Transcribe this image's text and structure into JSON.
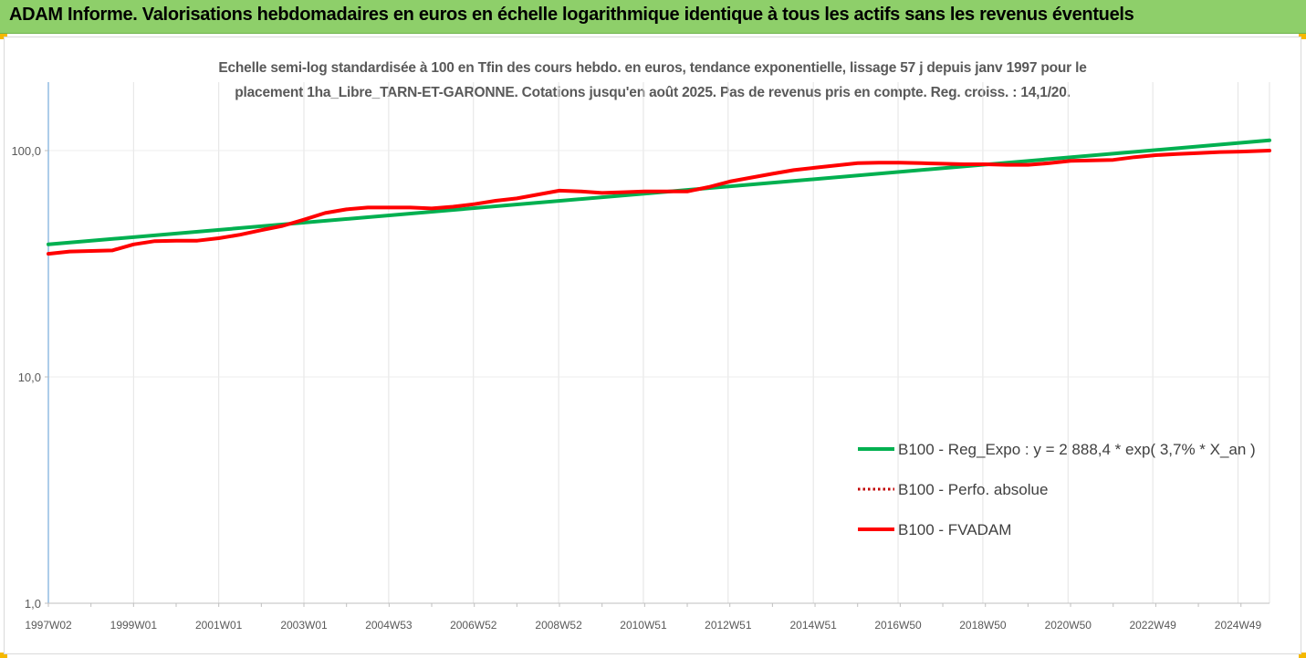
{
  "header": {
    "title": "ADAM Informe. Valorisations hebdomadaires en euros en échelle logarithmique identique à tous les actifs sans les revenus éventuels"
  },
  "chart_data": {
    "type": "line",
    "subtitle_line1": "Echelle semi-log standardisée à 100 en Tfin des cours hebdo. en euros, tendance exponentielle, lissage 57 j depuis janv 1997 pour le",
    "subtitle_line2": "placement 1ha_Libre_TARN-ET-GARONNE. Cotations jusqu'en août 2025. Pas de revenus pris en compte. Reg. croiss. : 14,1/20.",
    "y_scale": "log",
    "ylim": [
      1,
      200
    ],
    "y_ticks": [
      {
        "value": 100,
        "label": "100,0"
      },
      {
        "value": 10,
        "label": "10,0"
      },
      {
        "value": 1,
        "label": "1,0"
      }
    ],
    "xlim": [
      1997.0,
      2025.67
    ],
    "x_ticks": [
      {
        "value": 1997.0,
        "label": "1997W02"
      },
      {
        "value": 1999.0,
        "label": "1999W01"
      },
      {
        "value": 2001.0,
        "label": "2001W01"
      },
      {
        "value": 2003.0,
        "label": "2003W01"
      },
      {
        "value": 2004.99,
        "label": "2004W53"
      },
      {
        "value": 2006.98,
        "label": "2006W52"
      },
      {
        "value": 2008.98,
        "label": "2008W52"
      },
      {
        "value": 2010.97,
        "label": "2010W51"
      },
      {
        "value": 2012.96,
        "label": "2012W51"
      },
      {
        "value": 2014.96,
        "label": "2014W51"
      },
      {
        "value": 2016.95,
        "label": "2016W50"
      },
      {
        "value": 2018.94,
        "label": "2018W50"
      },
      {
        "value": 2020.94,
        "label": "2020W50"
      },
      {
        "value": 2022.93,
        "label": "2022W49"
      },
      {
        "value": 2024.93,
        "label": "2024W49"
      }
    ],
    "grid": "vertical",
    "legend_position": "right",
    "series": [
      {
        "name": "B100 - Reg_Expo : y = 2 888,4 * exp( 3,7% *  X_an )",
        "color": "#00b050",
        "style": "solid",
        "x": [
          1997.0,
          2025.67
        ],
        "y": [
          38.5,
          111.0
        ]
      },
      {
        "name": "B100 - Perfo. absolue",
        "color": "#c00000",
        "style": "dotted",
        "x": [],
        "y": []
      },
      {
        "name": "B100 - FVADAM",
        "color": "#ff0000",
        "style": "solid",
        "x": [
          1997.0,
          1997.5,
          1998.0,
          1998.5,
          1999.0,
          1999.5,
          2000.0,
          2000.5,
          2001.0,
          2001.5,
          2002.0,
          2002.5,
          2003.0,
          2003.5,
          2004.0,
          2004.5,
          2005.0,
          2005.5,
          2006.0,
          2006.5,
          2007.0,
          2007.5,
          2008.0,
          2008.5,
          2009.0,
          2009.5,
          2010.0,
          2010.5,
          2011.0,
          2011.5,
          2012.0,
          2012.5,
          2013.0,
          2013.5,
          2014.0,
          2014.5,
          2015.0,
          2015.5,
          2016.0,
          2016.5,
          2017.0,
          2017.5,
          2018.0,
          2018.5,
          2019.0,
          2019.5,
          2020.0,
          2020.5,
          2021.0,
          2021.5,
          2022.0,
          2022.5,
          2023.0,
          2023.5,
          2024.0,
          2024.5,
          2025.0,
          2025.67
        ],
        "y": [
          35.0,
          35.8,
          36.0,
          36.2,
          38.5,
          39.8,
          40.0,
          40.0,
          41.0,
          42.5,
          44.5,
          46.5,
          49.5,
          53.0,
          55.0,
          56.0,
          56.0,
          56.0,
          55.5,
          56.5,
          58.0,
          60.0,
          61.5,
          64.0,
          66.5,
          66.0,
          65.0,
          65.5,
          66.0,
          66.0,
          66.0,
          69.0,
          73.0,
          76.0,
          79.0,
          82.0,
          84.0,
          86.0,
          88.0,
          88.5,
          88.5,
          88.0,
          87.5,
          87.0,
          87.0,
          86.5,
          86.5,
          88.0,
          90.0,
          90.5,
          91.0,
          93.5,
          95.5,
          96.5,
          97.5,
          98.5,
          99.0,
          100.0
        ]
      }
    ]
  }
}
